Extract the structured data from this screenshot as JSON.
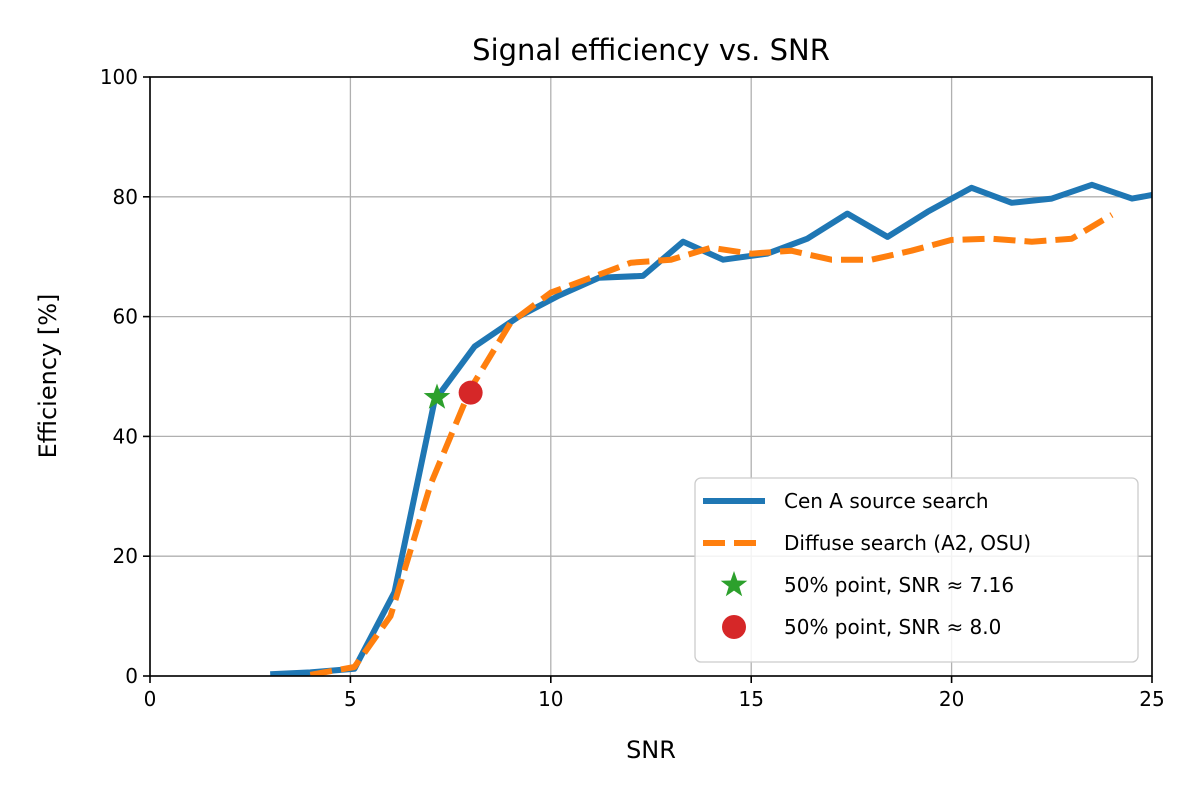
{
  "chart_data": {
    "type": "line",
    "title": "Signal efficiency vs. SNR",
    "xlabel": "SNR",
    "ylabel": "Efficiency [%]",
    "xlim": [
      0,
      25
    ],
    "ylim": [
      0,
      100
    ],
    "xticks": [
      0,
      5,
      10,
      15,
      20,
      25
    ],
    "yticks": [
      0,
      20,
      40,
      60,
      80,
      100
    ],
    "grid": true,
    "legend_position": "lower-right",
    "series": [
      {
        "name": "Cen A source search",
        "style": "solid",
        "color": "#1f77b4",
        "x": [
          3.0,
          4.0,
          5.1,
          6.1,
          7.1,
          8.1,
          9.2,
          10.2,
          11.2,
          12.3,
          13.3,
          14.3,
          15.4,
          16.4,
          17.4,
          18.4,
          19.4,
          20.5,
          21.5,
          22.5,
          23.5,
          24.5,
          25.0
        ],
        "y": [
          0.3,
          0.6,
          1.2,
          14.0,
          46.0,
          55.0,
          60.0,
          63.5,
          66.5,
          66.8,
          72.5,
          69.5,
          70.5,
          73.0,
          77.2,
          73.3,
          77.5,
          81.5,
          79.0,
          79.7,
          82.0,
          79.7,
          80.3
        ]
      },
      {
        "name": "Diffuse search (A2, OSU)",
        "style": "dashed",
        "color": "#ff7f0e",
        "x": [
          4.0,
          5.1,
          6.0,
          7.0,
          8.0,
          9.0,
          10.0,
          11.0,
          12.0,
          13.0,
          14.0,
          15.0,
          16.0,
          17.0,
          18.0,
          19.0,
          20.0,
          21.0,
          22.0,
          23.0,
          24.0
        ],
        "y": [
          0.2,
          1.5,
          10.0,
          32.0,
          48.0,
          59.0,
          64.0,
          66.5,
          69.0,
          69.5,
          71.5,
          70.5,
          71.0,
          69.5,
          69.5,
          71.0,
          72.8,
          73.0,
          72.5,
          73.0,
          77.0
        ]
      },
      {
        "name": "50% point, SNR$\\approx$7.16",
        "legend_text": "50% point, SNR ≈ 7.16",
        "style": "marker-star",
        "color": "#2ca02c",
        "x": [
          7.16
        ],
        "y": [
          46.5
        ]
      },
      {
        "name": "50% point, SNR ≈ 8.0",
        "legend_text": "50% point, SNR ≈ 8.0",
        "style": "marker-circle",
        "color": "#d62728",
        "x": [
          8.0
        ],
        "y": [
          47.3
        ]
      }
    ]
  }
}
